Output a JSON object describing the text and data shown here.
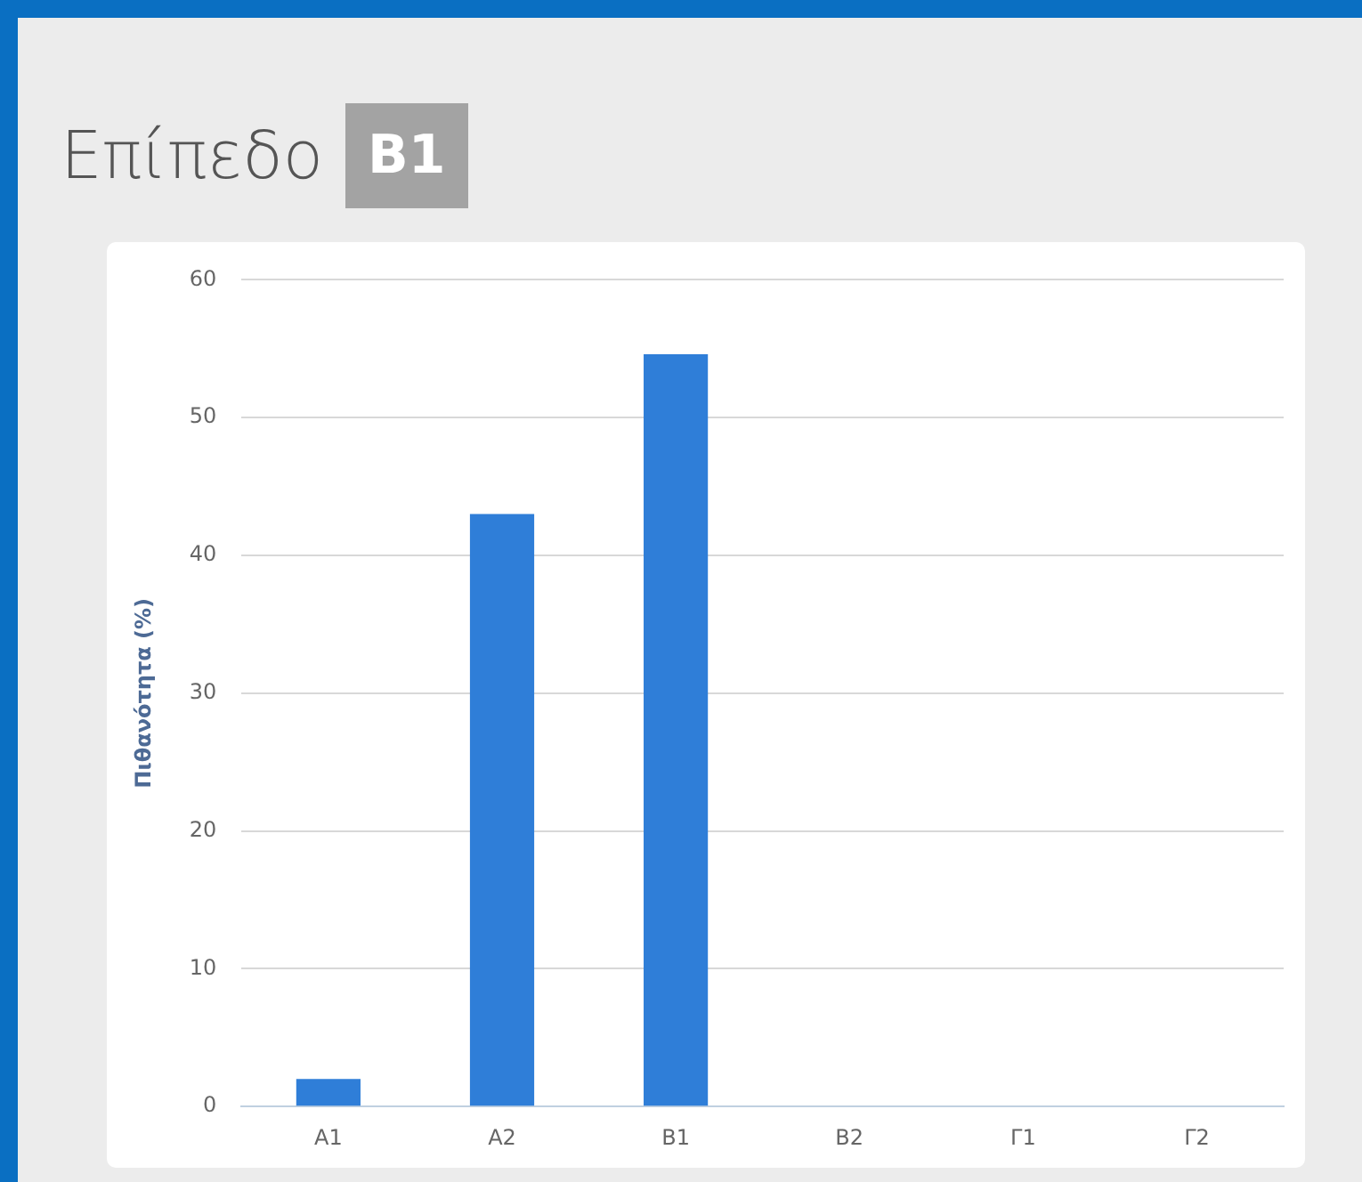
{
  "chart_data": {
    "type": "bar",
    "title": "Επίπεδο",
    "subtitle": "Β1",
    "ylabel": "Πιθανότητα (%)",
    "categories": [
      "Α1",
      "Α2",
      "Β1",
      "Β2",
      "Γ1",
      "Γ2"
    ],
    "values": [
      2,
      43,
      54.6,
      0,
      0,
      0
    ],
    "color": "#2f7ed8",
    "ylim": [
      0,
      60
    ],
    "yticks": [
      0,
      10,
      20,
      30,
      40,
      50,
      60
    ],
    "grid": "y",
    "legend": false
  }
}
